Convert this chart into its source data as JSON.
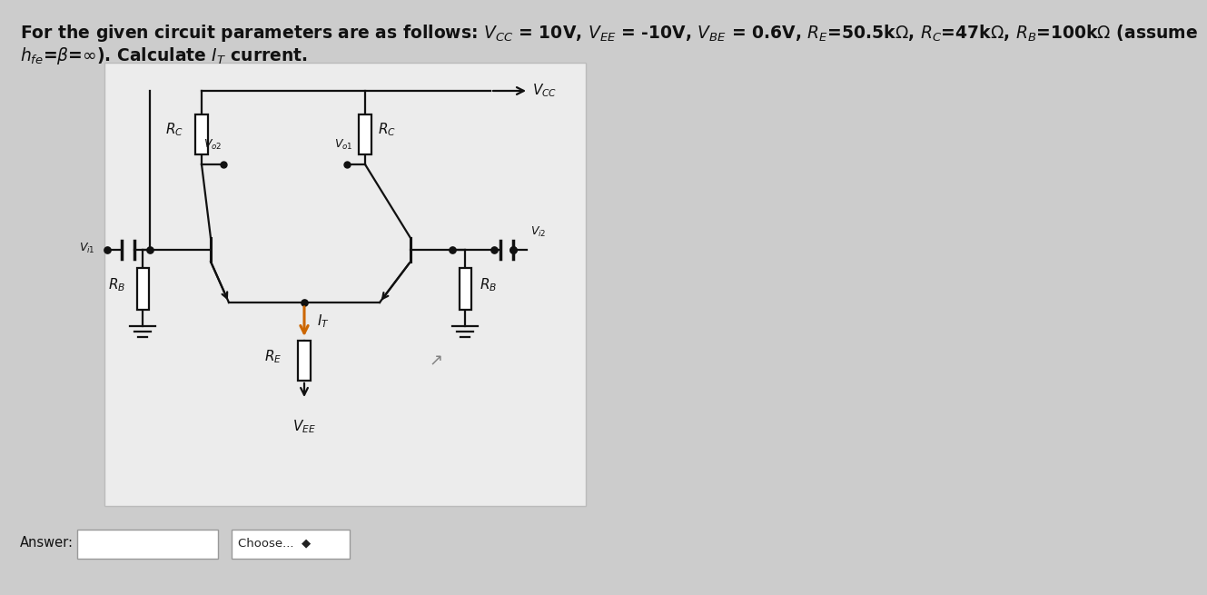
{
  "bg_color": "#cccccc",
  "panel_color": "#e8e8e8",
  "line_color": "#111111",
  "arrow_color": "#cc6600",
  "title1": "For the given circuit parameters are as follows: $V_{CC}$ = 10V, $V_{EE}$ = -10V, $V_{BE}$ = 0.6V, $R_E$=50.5k$\\Omega$, $R_C$=47k$\\Omega$, $R_B$=100k$\\Omega$ (assume",
  "title2": "$h_{fe}$=$\\beta$=$\\infty$). Calculate $I_T$ current.",
  "title_fs": 13.5,
  "title2_bold": true,
  "answer_label": "Answer:",
  "choose_label": "Choose...  ◆",
  "lw": 1.6
}
